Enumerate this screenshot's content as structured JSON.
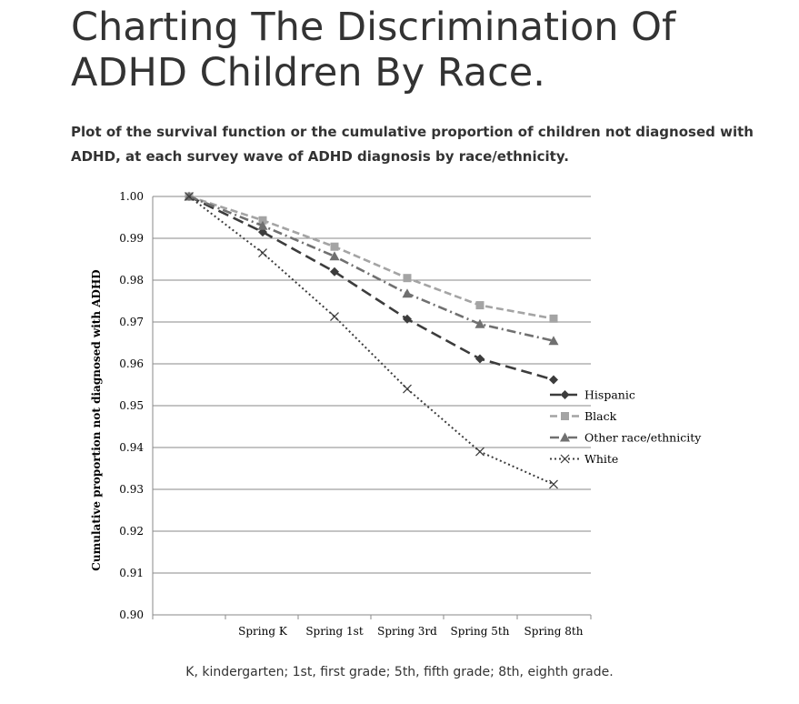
{
  "page": {
    "title": "Charting The Discrimination Of ADHD Children By Race.",
    "subtitle": "Plot of the survival function or the cumulative proportion of children not diagnosed with ADHD, at each survey wave of ADHD diagnosis by race/ethnicity.",
    "caption": "K, kindergarten; 1st, first grade; 5th, fifth grade; 8th, eighth grade."
  },
  "chart_data": {
    "type": "line",
    "categories": [
      "",
      "Spring K",
      "Spring 1st",
      "Spring 3rd",
      "Spring 5th",
      "Spring 8th"
    ],
    "ylabel": "Cumulative proportion not diagnosed with ADHD",
    "xlabel": "",
    "ylim": [
      0.9,
      1.0
    ],
    "yticks": [
      "0.90",
      "0.91",
      "0.92",
      "0.93",
      "0.94",
      "0.95",
      "0.96",
      "0.97",
      "0.98",
      "0.99",
      "1.00"
    ],
    "grid": true,
    "legend_position": "right",
    "series": [
      {
        "name": "Hispanic",
        "values": [
          1.0,
          0.9915,
          0.982,
          0.9707,
          0.9612,
          0.9562
        ],
        "color": "#3c3c3c",
        "marker": "diamond",
        "dash": "long-dash"
      },
      {
        "name": "Black",
        "values": [
          1.0,
          0.9943,
          0.988,
          0.9805,
          0.974,
          0.9708
        ],
        "color": "#a4a4a4",
        "marker": "square",
        "dash": "dash"
      },
      {
        "name": "Other race/ethnicity",
        "values": [
          1.0,
          0.993,
          0.9857,
          0.9768,
          0.9695,
          0.9655
        ],
        "color": "#707070",
        "marker": "triangle",
        "dash": "dash-dot"
      },
      {
        "name": "White",
        "values": [
          1.0,
          0.9865,
          0.9713,
          0.954,
          0.939,
          0.9312
        ],
        "color": "#3c3c3c",
        "marker": "x",
        "dash": "dot"
      }
    ]
  }
}
